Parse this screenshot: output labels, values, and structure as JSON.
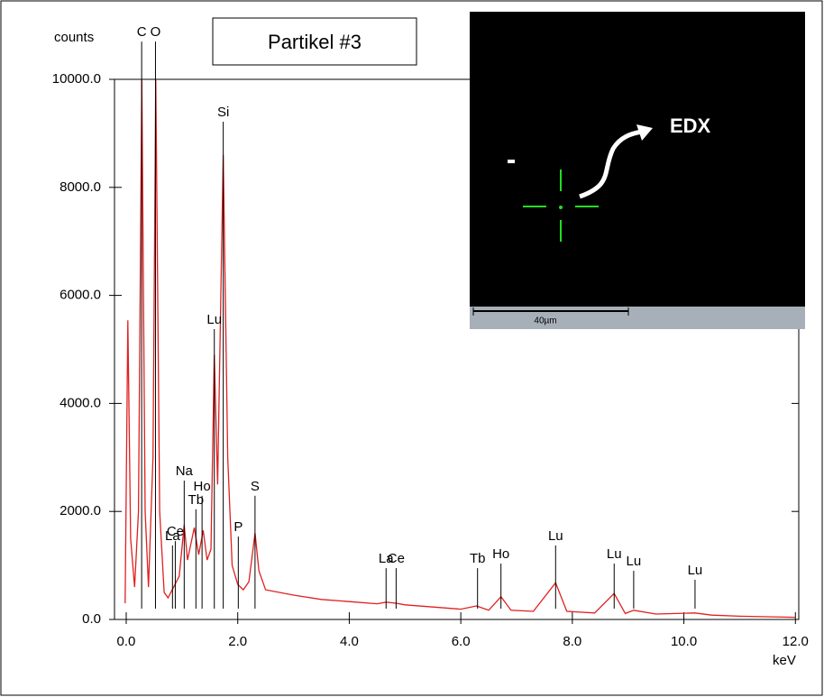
{
  "chart_data": {
    "type": "line",
    "title": "Partikel #3",
    "y_label": "counts",
    "x_label": "keV",
    "color": "#e02020",
    "x": [
      -0.02,
      0.03,
      0.08,
      0.15,
      0.22,
      0.28,
      0.34,
      0.4,
      0.48,
      0.53,
      0.6,
      0.68,
      0.75,
      0.85,
      0.95,
      1.04,
      1.1,
      1.22,
      1.3,
      1.38,
      1.45,
      1.52,
      1.58,
      1.64,
      1.74,
      1.82,
      1.9,
      2.0,
      2.1,
      2.2,
      2.31,
      2.38,
      2.5,
      3.0,
      3.5,
      4.0,
      4.5,
      4.66,
      4.84,
      5.0,
      5.5,
      6.0,
      6.28,
      6.5,
      6.72,
      6.9,
      7.3,
      7.7,
      7.9,
      8.4,
      8.75,
      8.95,
      9.1,
      9.5,
      10.2,
      10.5,
      11.0,
      12.0
    ],
    "values": [
      300,
      5540,
      1500,
      600,
      2000,
      10000,
      2000,
      600,
      3000,
      10000,
      2000,
      500,
      400,
      600,
      800,
      1750,
      1100,
      1700,
      1200,
      1650,
      1100,
      1300,
      4900,
      2500,
      8600,
      3000,
      1000,
      650,
      550,
      700,
      1600,
      900,
      550,
      450,
      370,
      330,
      290,
      320,
      300,
      270,
      230,
      190,
      250,
      170,
      420,
      170,
      150,
      680,
      150,
      120,
      480,
      110,
      170,
      100,
      120,
      80,
      60,
      40
    ],
    "xlim": [
      -0.21,
      12.06
    ],
    "ylim": [
      0,
      10000
    ],
    "xticks": [
      {
        "value": 0,
        "label": "0.0"
      },
      {
        "value": 2,
        "label": "2.0"
      },
      {
        "value": 4,
        "label": "4.0"
      },
      {
        "value": 6,
        "label": "6.0"
      },
      {
        "value": 8,
        "label": "8.0"
      },
      {
        "value": 10,
        "label": "10.0"
      },
      {
        "value": 12,
        "label": "12.0"
      }
    ],
    "yticks": [
      {
        "value": 0,
        "label": "0.0"
      },
      {
        "value": 2000,
        "label": "2000.0"
      },
      {
        "value": 4000,
        "label": "4000.0"
      },
      {
        "value": 6000,
        "label": "6000.0"
      },
      {
        "value": 8000,
        "label": "8000.0"
      },
      {
        "value": 10000,
        "label": "10000.0"
      }
    ],
    "annotations": [
      {
        "text": "C",
        "x": 0.277,
        "y": 10700
      },
      {
        "text": "O",
        "x": 0.525,
        "y": 10700
      },
      {
        "text": "Si",
        "x": 1.74,
        "y": 9215
      },
      {
        "text": "Lu",
        "x": 1.58,
        "y": 5375
      },
      {
        "text": "Na",
        "x": 1.04,
        "y": 2570
      },
      {
        "text": "Ho",
        "x": 1.36,
        "y": 2290
      },
      {
        "text": "Tb",
        "x": 1.25,
        "y": 2040
      },
      {
        "text": "Ce",
        "x": 0.88,
        "y": 1450
      },
      {
        "text": "La",
        "x": 0.83,
        "y": 1370
      },
      {
        "text": "S",
        "x": 2.31,
        "y": 2290
      },
      {
        "text": "P",
        "x": 2.01,
        "y": 1535
      },
      {
        "text": "La",
        "x": 4.66,
        "y": 950
      },
      {
        "text": "Ce",
        "x": 4.84,
        "y": 950
      },
      {
        "text": "Tb",
        "x": 6.3,
        "y": 950
      },
      {
        "text": "Ho",
        "x": 6.72,
        "y": 1035
      },
      {
        "text": "Lu",
        "x": 7.7,
        "y": 1370
      },
      {
        "text": "Lu",
        "x": 8.75,
        "y": 1035
      },
      {
        "text": "Lu",
        "x": 9.1,
        "y": 900
      },
      {
        "text": "Lu",
        "x": 10.2,
        "y": 735
      }
    ]
  },
  "inset": {
    "label": "EDX",
    "scale_bar": "40µm"
  }
}
